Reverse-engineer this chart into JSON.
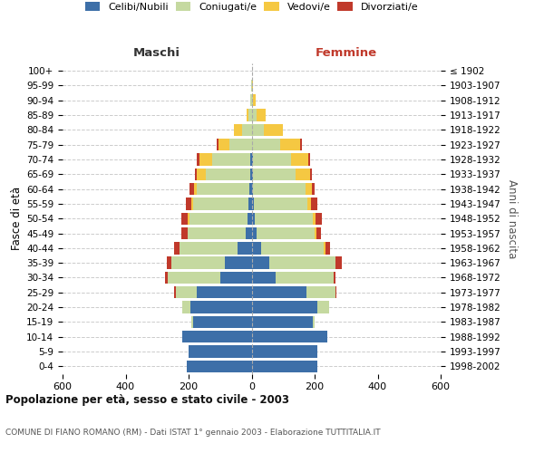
{
  "age_groups": [
    "0-4",
    "5-9",
    "10-14",
    "15-19",
    "20-24",
    "25-29",
    "30-34",
    "35-39",
    "40-44",
    "45-49",
    "50-54",
    "55-59",
    "60-64",
    "65-69",
    "70-74",
    "75-79",
    "80-84",
    "85-89",
    "90-94",
    "95-99",
    "100+"
  ],
  "birth_years": [
    "1998-2002",
    "1993-1997",
    "1988-1992",
    "1983-1987",
    "1978-1982",
    "1973-1977",
    "1968-1972",
    "1963-1967",
    "1958-1962",
    "1953-1957",
    "1948-1952",
    "1943-1947",
    "1938-1942",
    "1933-1937",
    "1928-1932",
    "1923-1927",
    "1918-1922",
    "1913-1917",
    "1908-1912",
    "1903-1907",
    "≤ 1902"
  ],
  "colors": {
    "celibi": "#3d6fa8",
    "coniugati": "#c5d9a0",
    "vedovi": "#f5c842",
    "divorziati": "#c0392b"
  },
  "male_celibi": [
    205,
    200,
    220,
    185,
    195,
    175,
    100,
    85,
    45,
    18,
    12,
    10,
    8,
    5,
    5,
    0,
    0,
    0,
    0,
    0,
    0
  ],
  "male_coniugati": [
    0,
    0,
    0,
    5,
    25,
    65,
    165,
    170,
    185,
    185,
    185,
    175,
    165,
    140,
    120,
    70,
    30,
    10,
    5,
    2,
    0
  ],
  "male_vedovi": [
    0,
    0,
    0,
    0,
    0,
    0,
    0,
    0,
    0,
    0,
    5,
    5,
    10,
    30,
    40,
    35,
    25,
    5,
    0,
    0,
    0
  ],
  "male_divorziati": [
    0,
    0,
    0,
    0,
    0,
    5,
    10,
    15,
    15,
    20,
    20,
    20,
    15,
    5,
    10,
    5,
    0,
    0,
    0,
    0,
    0
  ],
  "female_nubili": [
    210,
    210,
    240,
    195,
    210,
    175,
    75,
    55,
    30,
    15,
    10,
    8,
    5,
    5,
    5,
    0,
    0,
    0,
    0,
    0,
    0
  ],
  "female_coniugate": [
    0,
    0,
    0,
    5,
    35,
    90,
    185,
    210,
    200,
    185,
    185,
    170,
    165,
    135,
    120,
    90,
    40,
    15,
    5,
    2,
    0
  ],
  "female_vedove": [
    0,
    0,
    0,
    0,
    0,
    0,
    0,
    0,
    5,
    5,
    8,
    10,
    20,
    45,
    55,
    65,
    60,
    30,
    8,
    3,
    1
  ],
  "female_divorziate": [
    0,
    0,
    0,
    0,
    0,
    5,
    5,
    20,
    15,
    15,
    20,
    20,
    10,
    5,
    5,
    5,
    0,
    0,
    0,
    0,
    0
  ],
  "xlim": 600,
  "title": "Popolazione per età, sesso e stato civile - 2003",
  "subtitle": "COMUNE DI FIANO ROMANO (RM) - Dati ISTAT 1° gennaio 2003 - Elaborazione TUTTITALIA.IT",
  "ylabel_left": "Fasce di età",
  "ylabel_right": "Anni di nascita",
  "label_maschi": "Maschi",
  "label_femmine": "Femmine",
  "legend_labels": [
    "Celibi/Nubili",
    "Coniugati/e",
    "Vedovi/e",
    "Divorziati/e"
  ],
  "background_color": "#ffffff"
}
